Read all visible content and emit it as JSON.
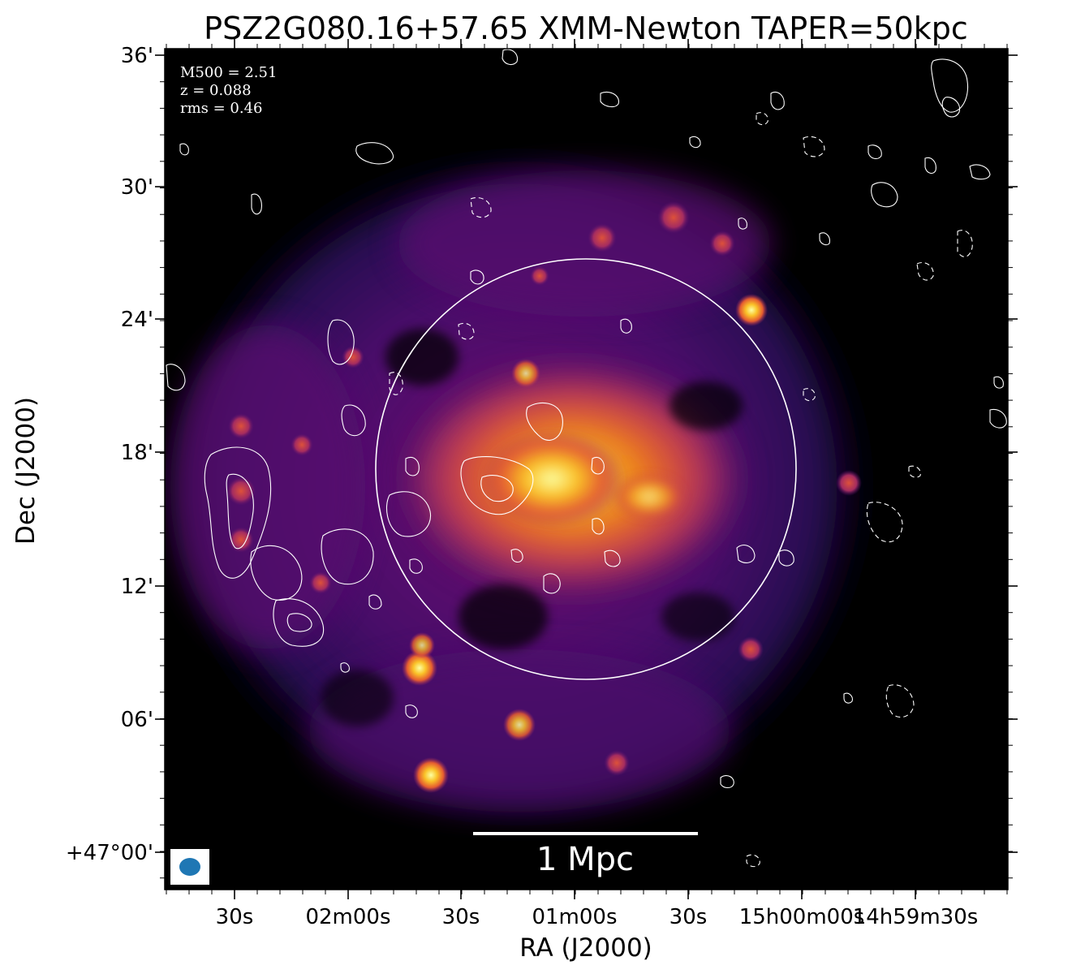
{
  "figure": {
    "title": "PSZ2G080.16+57.65 XMM-Newton TAPER=50kpc",
    "xlabel": "RA (J2000)",
    "ylabel": "Dec (J2000)",
    "info_lines": [
      "M500 = 2.51",
      "z = 0.088",
      "rms = 0.46"
    ],
    "scalebar_label": "1 Mpc",
    "dec_ticks": [
      "36'",
      "30'",
      "24'",
      "18'",
      "12'",
      "06'",
      "+47°00'"
    ],
    "ra_ticks": [
      "30s",
      "02m00s",
      "30s",
      "01m00s",
      "30s",
      "15h00m00s",
      "14h59m30s"
    ],
    "colors": {
      "background": "#000000",
      "contour": "#ffffff",
      "beam": "#1f77b4",
      "colormap": "inferno"
    }
  }
}
